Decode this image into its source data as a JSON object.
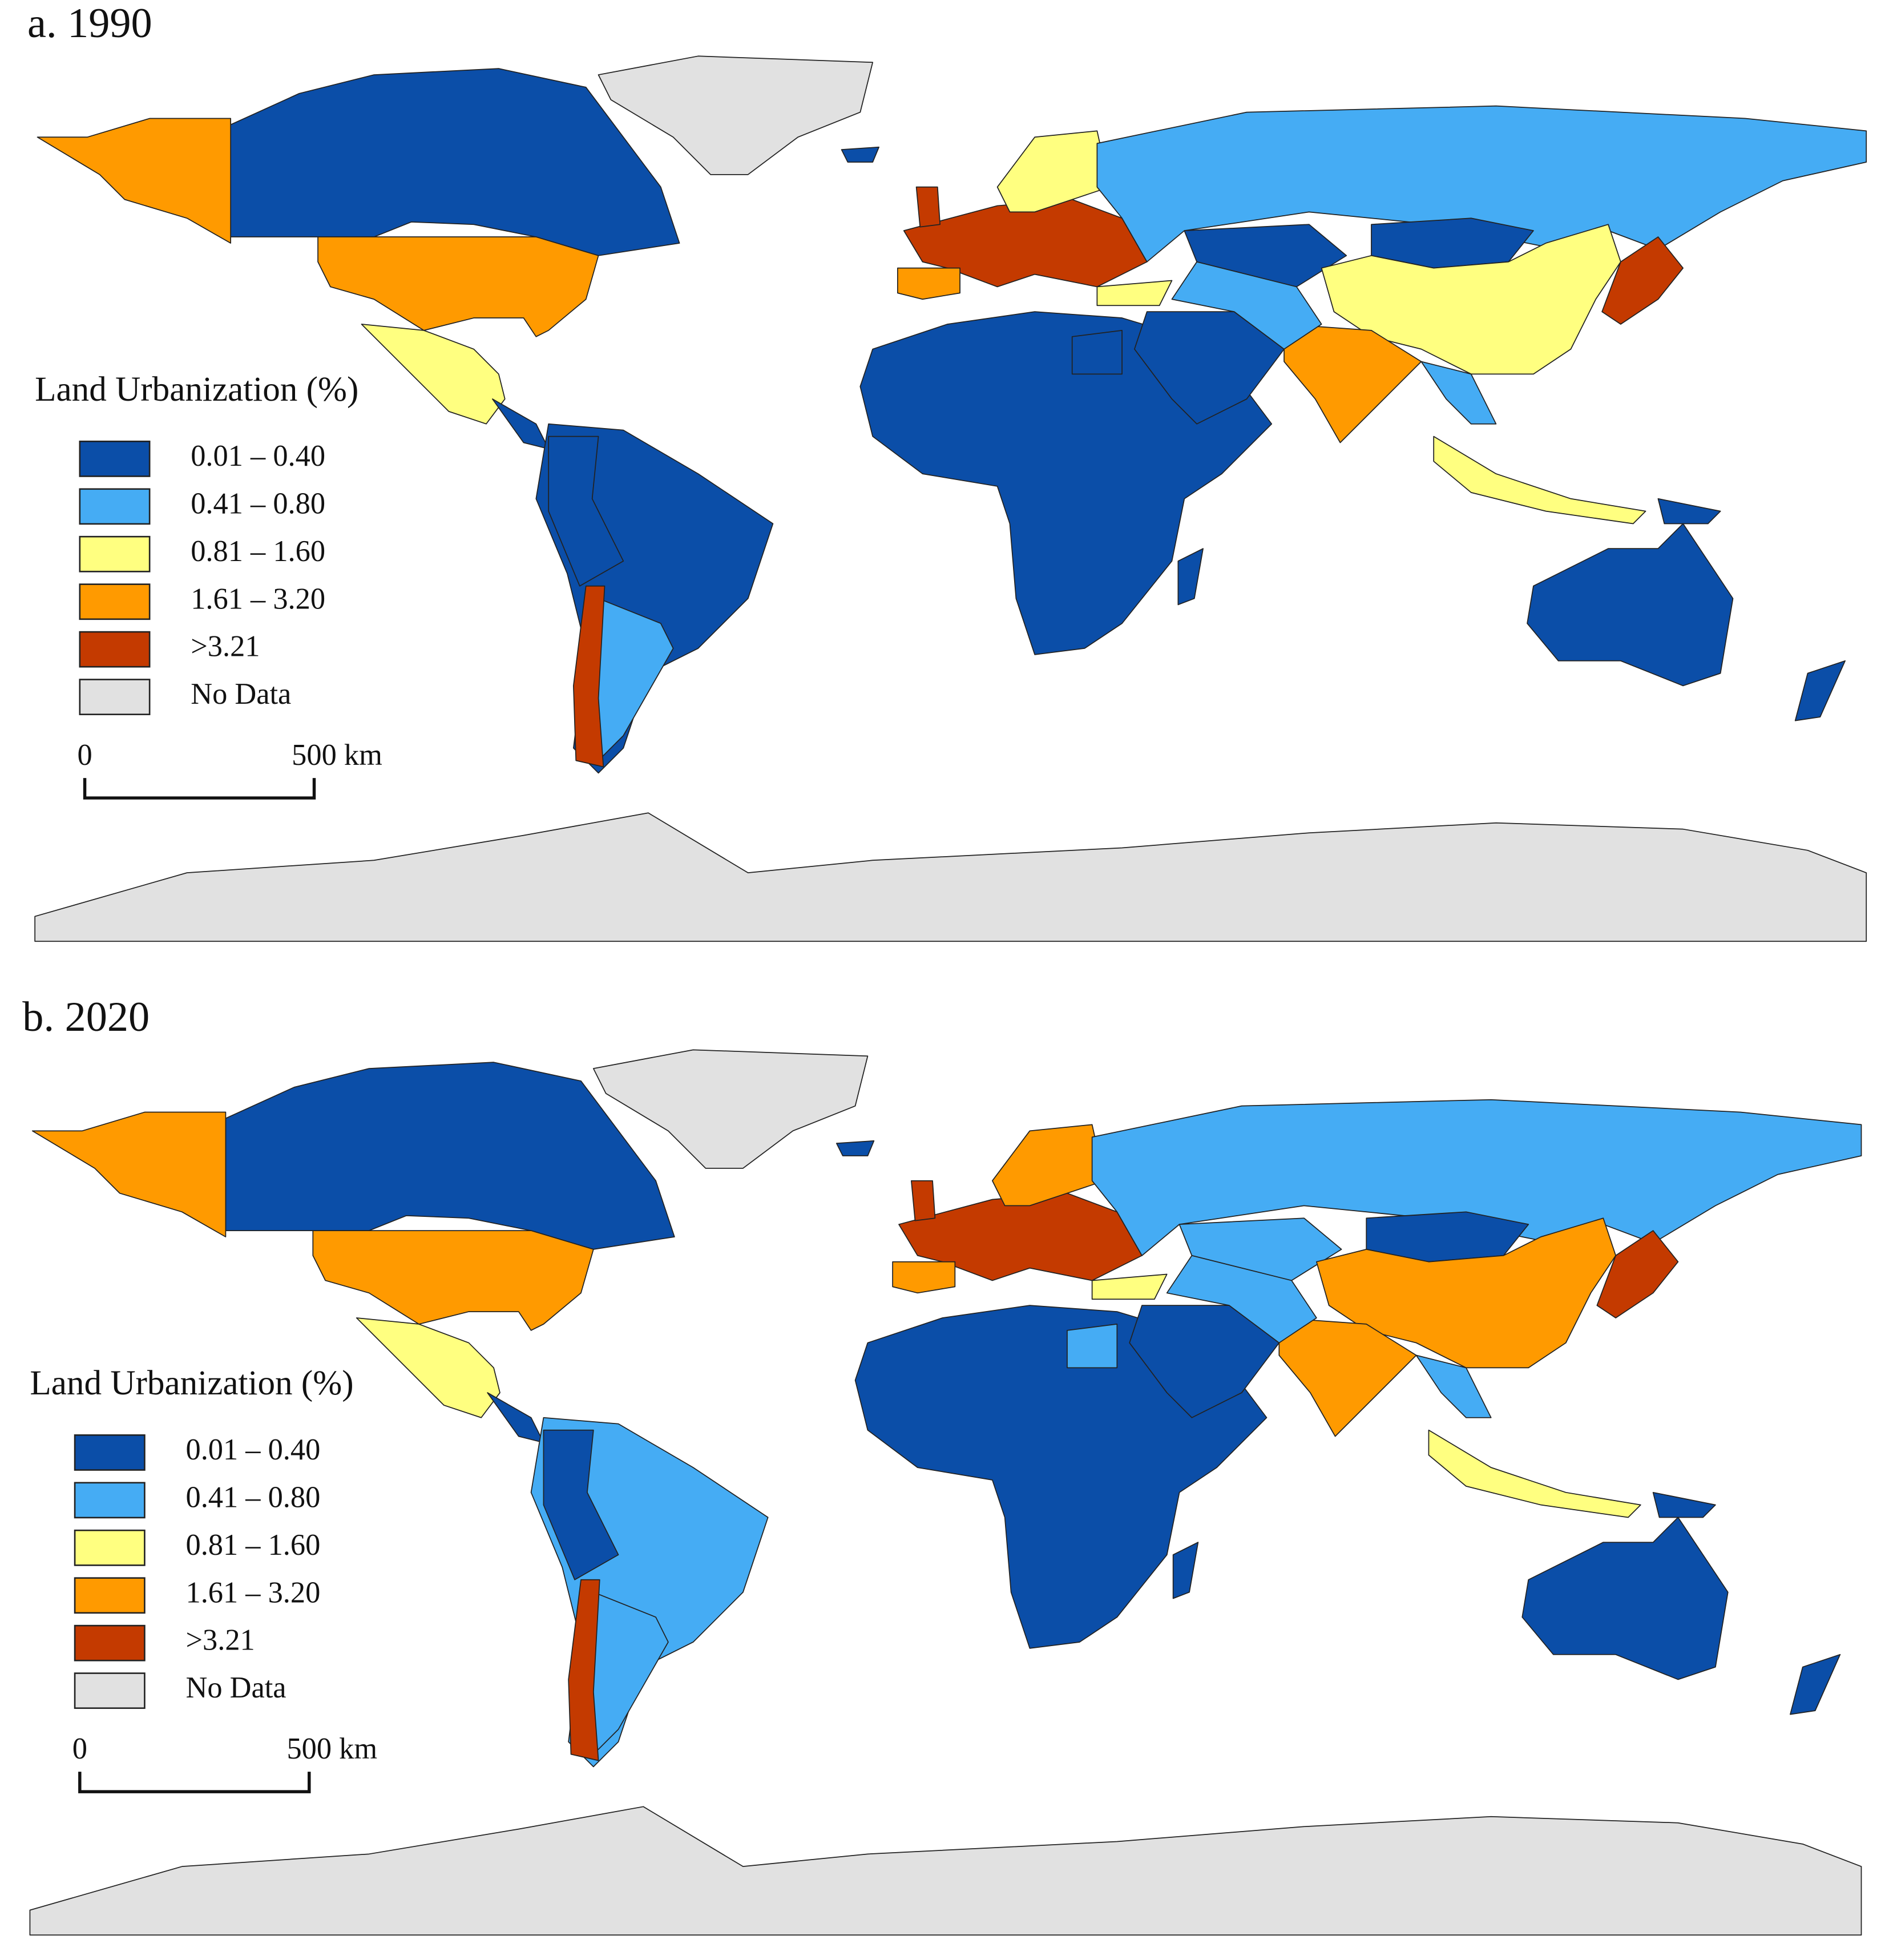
{
  "panels": [
    {
      "title": "a. 1990",
      "legend": {
        "title": "Land Urbanization (%)",
        "items": [
          {
            "label": "0.01 – 0.40",
            "color": "#0b4ea8"
          },
          {
            "label": "0.41 – 0.80",
            "color": "#45acf4"
          },
          {
            "label": "0.81 – 1.60",
            "color": "#ffff80"
          },
          {
            "label": "1.61 – 3.20",
            "color": "#ff9a00"
          },
          {
            "label": ">3.21",
            "color": "#c43a00"
          },
          {
            "label": "No Data",
            "color": "#e1e1e1"
          }
        ]
      },
      "scale_bar": {
        "start": "0",
        "end": "500 km"
      }
    },
    {
      "title": "b. 2020",
      "legend": {
        "title": "Land Urbanization (%)",
        "items": [
          {
            "label": "0.01 – 0.40",
            "color": "#0b4ea8"
          },
          {
            "label": "0.41 – 0.80",
            "color": "#45acf4"
          },
          {
            "label": "0.81 – 1.60",
            "color": "#ffff80"
          },
          {
            "label": "1.61 – 3.20",
            "color": "#ff9a00"
          },
          {
            "label": ">3.21",
            "color": "#c43a00"
          },
          {
            "label": "No Data",
            "color": "#e1e1e1"
          }
        ]
      },
      "scale_bar": {
        "start": "0",
        "end": "500 km"
      }
    }
  ]
}
